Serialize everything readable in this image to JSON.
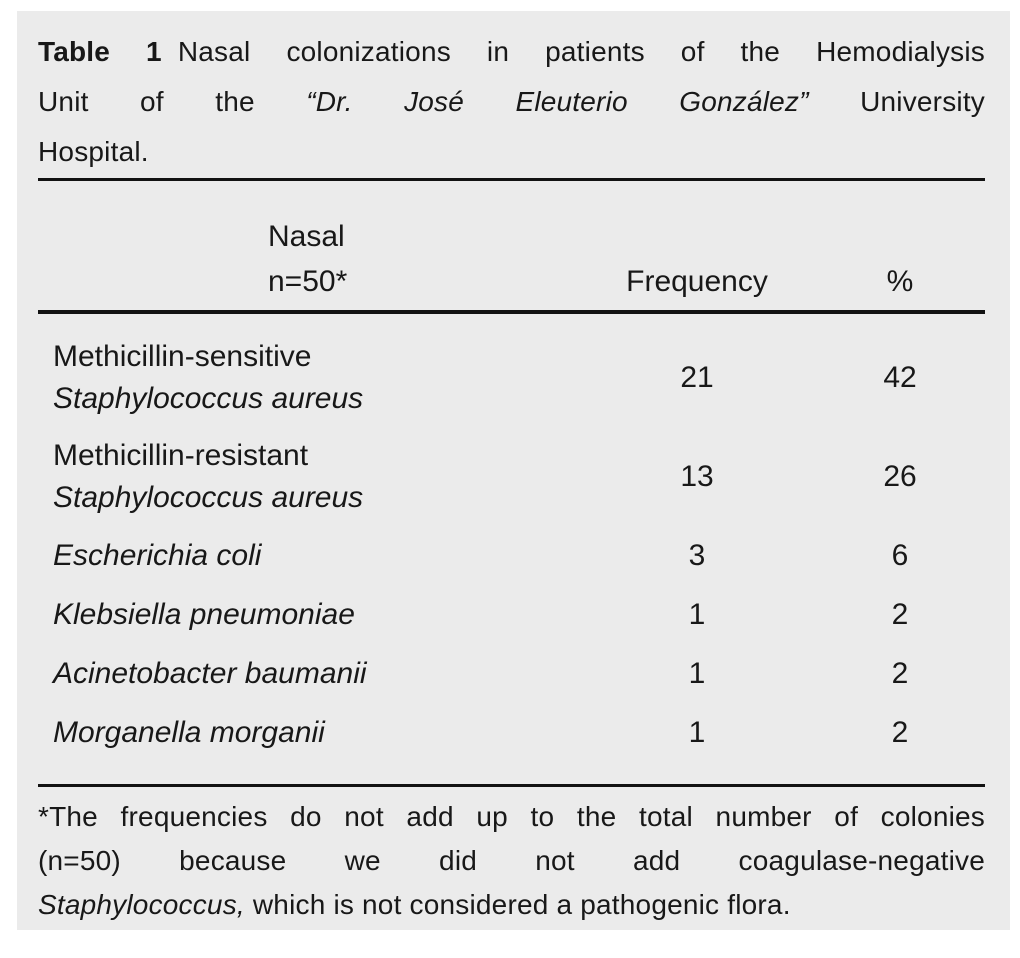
{
  "colors": {
    "panel_bg": "#ebebeb",
    "rule": "#121212",
    "text": "#181818"
  },
  "caption": {
    "label": "Table 1",
    "line1_rest": "Nasal colonizations in patients of the Hemodialysis",
    "line2_pre": "Unit of the",
    "line2_italic": "“Dr. José Eleuterio González”",
    "line2_post": "University",
    "line3": "Hospital."
  },
  "header": {
    "col1_line1": "Nasal",
    "col1_line2": "n=50*",
    "col2": "Frequency",
    "col3": "%"
  },
  "rows": [
    {
      "name_regular": "Methicillin-sensitive",
      "name_italic": "Staphylococcus aureus",
      "frequency": "21",
      "percent": "42"
    },
    {
      "name_regular": "Methicillin-resistant",
      "name_italic": "Staphylococcus aureus",
      "frequency": "13",
      "percent": "26"
    },
    {
      "name_italic": "Escherichia coli",
      "frequency": "3",
      "percent": "6"
    },
    {
      "name_italic": "Klebsiella pneumoniae",
      "frequency": "1",
      "percent": "2"
    },
    {
      "name_italic": "Acinetobacter baumanii",
      "frequency": "1",
      "percent": "2"
    },
    {
      "name_italic": "Morganella morganii",
      "frequency": "1",
      "percent": "2"
    }
  ],
  "footnote": {
    "line1": "*The frequencies do not add up to the total number of colonies",
    "line2": "(n=50) because we did not add coagulase-negative",
    "line3_italic": "Staphylococcus,",
    "line3_rest": "which is not considered a pathogenic flora."
  }
}
